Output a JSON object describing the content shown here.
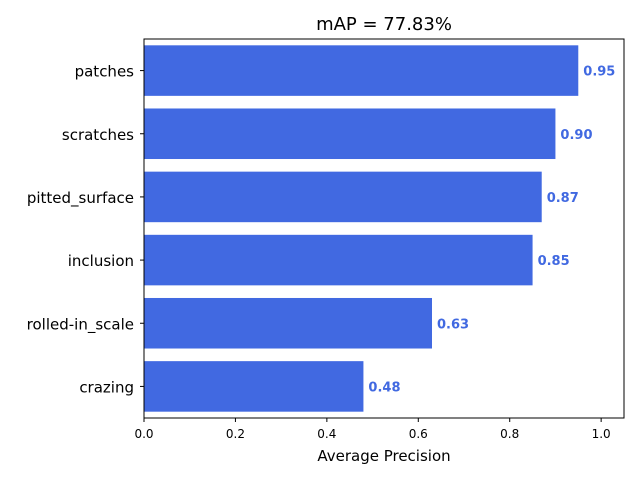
{
  "chart_data": {
    "type": "bar",
    "orientation": "horizontal",
    "title": "mAP = 77.83%",
    "xlabel": "Average Precision",
    "ylabel": "",
    "categories": [
      "patches",
      "scratches",
      "pitted_surface",
      "inclusion",
      "rolled-in_scale",
      "crazing"
    ],
    "values": [
      0.95,
      0.9,
      0.87,
      0.85,
      0.63,
      0.48
    ],
    "value_labels": [
      "0.95",
      "0.90",
      "0.87",
      "0.85",
      "0.63",
      "0.48"
    ],
    "xlim": [
      0,
      1.05
    ],
    "xticks": [
      0.0,
      0.2,
      0.4,
      0.6,
      0.8,
      1.0
    ],
    "xtick_labels": [
      "0.0",
      "0.2",
      "0.4",
      "0.6",
      "0.8",
      "1.0"
    ],
    "grid": false,
    "legend": "none",
    "bar_color": "#4169e1",
    "value_label_color": "#4169e1"
  }
}
